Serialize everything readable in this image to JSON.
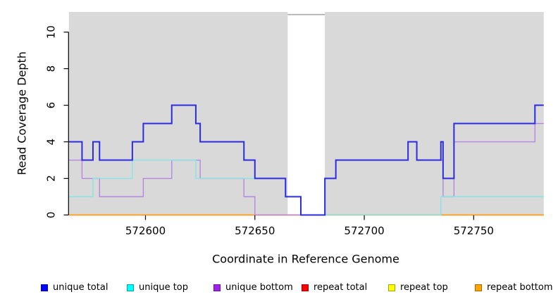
{
  "chart_data": {
    "type": "line",
    "step": "after",
    "title": "",
    "xlabel": "Coordinate in Reference Genome",
    "ylabel": "Read Coverage Depth",
    "xlim": [
      572565,
      572782
    ],
    "ylim": [
      0,
      11.1
    ],
    "x_ticks": [
      "572600",
      "572650",
      "572700",
      "572750"
    ],
    "x_tick_values": [
      572600,
      572650,
      572700,
      572750
    ],
    "y_ticks": [
      "0",
      "2",
      "4",
      "6",
      "8",
      "10"
    ],
    "y_tick_values": [
      0,
      2,
      4,
      6,
      8,
      10
    ],
    "grid": "off",
    "legend_position": "bottom",
    "plot_background_color": "#d9d9d9",
    "page_background_color": "#ffffff",
    "highlight_gap": {
      "x_start": 572665,
      "x_end": 572682,
      "color": "#ffffff",
      "top_border_color": "#a8a8a8"
    },
    "draw_order": [
      3,
      4,
      5,
      2,
      1,
      0
    ],
    "series": [
      {
        "name": "unique total",
        "color": "#0000ff",
        "line_color": "#2b2be0",
        "lwd": 2,
        "points": [
          [
            572565,
            4
          ],
          [
            572571,
            3
          ],
          [
            572576,
            4
          ],
          [
            572579,
            3
          ],
          [
            572594,
            4
          ],
          [
            572599,
            5
          ],
          [
            572612,
            6
          ],
          [
            572623,
            5
          ],
          [
            572625,
            4
          ],
          [
            572645,
            3
          ],
          [
            572650,
            2
          ],
          [
            572664,
            1
          ],
          [
            572671,
            0
          ],
          [
            572682,
            2
          ],
          [
            572687,
            3
          ],
          [
            572720,
            4
          ],
          [
            572724,
            3
          ],
          [
            572735,
            4
          ],
          [
            572736,
            2
          ],
          [
            572741,
            5
          ],
          [
            572778,
            6
          ],
          [
            572782,
            6
          ]
        ]
      },
      {
        "name": "unique top",
        "color": "#00ffff",
        "line_color": "#85e4e4",
        "lwd": 1.4,
        "points": [
          [
            572565,
            1
          ],
          [
            572576,
            2
          ],
          [
            572594,
            3
          ],
          [
            572623,
            2
          ],
          [
            572664,
            1
          ],
          [
            572671,
            0
          ],
          [
            572735,
            1
          ],
          [
            572782,
            1
          ]
        ]
      },
      {
        "name": "unique bottom",
        "color": "#a020f0",
        "line_color": "#b687e2",
        "lwd": 1.4,
        "points": [
          [
            572565,
            3
          ],
          [
            572571,
            2
          ],
          [
            572579,
            1
          ],
          [
            572599,
            2
          ],
          [
            572612,
            3
          ],
          [
            572625,
            2
          ],
          [
            572645,
            1
          ],
          [
            572650,
            0
          ],
          [
            572682,
            2
          ],
          [
            572687,
            3
          ],
          [
            572720,
            4
          ],
          [
            572724,
            3
          ],
          [
            572736,
            1
          ],
          [
            572741,
            4
          ],
          [
            572778,
            5
          ],
          [
            572782,
            5
          ]
        ]
      },
      {
        "name": "repeat total",
        "color": "#ff0000",
        "line_color": "#e8415a",
        "lwd": 1.4,
        "points": [
          [
            572565,
            0
          ],
          [
            572782,
            0
          ]
        ]
      },
      {
        "name": "repeat top",
        "color": "#ffff00",
        "line_color": "#f0e040",
        "lwd": 1.4,
        "points": [
          [
            572565,
            0
          ],
          [
            572782,
            0
          ]
        ]
      },
      {
        "name": "repeat bottom",
        "color": "#ffa500",
        "line_color": "#ff9d14",
        "lwd": 1.6,
        "points": [
          [
            572565,
            0
          ],
          [
            572782,
            0
          ]
        ]
      }
    ]
  }
}
